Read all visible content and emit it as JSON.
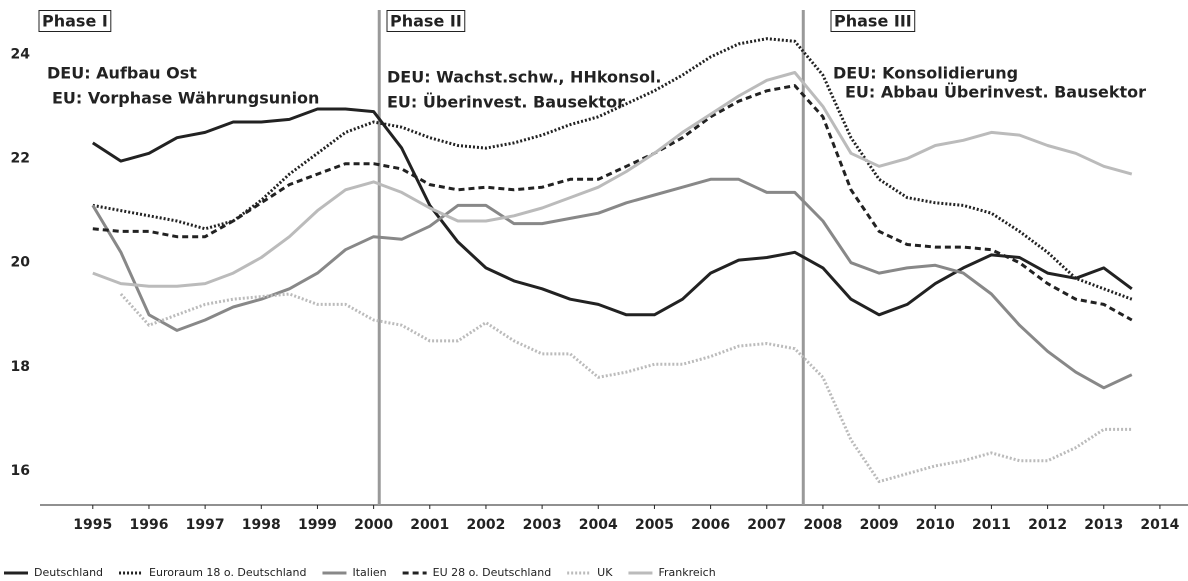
{
  "chart_data": {
    "type": "line",
    "x": [
      1995,
      1995.5,
      1996,
      1996.5,
      1997,
      1997.5,
      1998,
      1998.5,
      1999,
      1999.5,
      2000,
      2000.5,
      2001,
      2001.5,
      2002,
      2002.5,
      2003,
      2003.5,
      2004,
      2004.5,
      2005,
      2005.5,
      2006,
      2006.5,
      2007,
      2007.5,
      2008,
      2008.5,
      2009,
      2009.5,
      2010,
      2010.5,
      2011,
      2011.5,
      2012,
      2012.5,
      2013,
      2013.5
    ],
    "xlim": [
      1994.06,
      2014.5
    ],
    "xticks": [
      1995,
      1996,
      1997,
      1998,
      1999,
      2000,
      2001,
      2002,
      2003,
      2004,
      2005,
      2006,
      2007,
      2008,
      2009,
      2010,
      2011,
      2012,
      2013,
      2014
    ],
    "ylim": [
      15.35,
      24.85
    ],
    "yticks": [
      16,
      18,
      20,
      22,
      24
    ],
    "phase_lines": [
      2000.1,
      2007.65
    ],
    "annotations": [
      "Phase I",
      "Phase II",
      "Phase III",
      "DEU: Aufbau Ost",
      "EU: Vorphase Währungsunion",
      "DEU: Wachst.schw., HHkonsol.",
      "EU: Überinvest. Bausektor",
      "DEU: Konsolidierung",
      "EU: Abbau Überinvest. Bausektor"
    ],
    "series": [
      {
        "name": "Deutschland",
        "color": "#222222",
        "dash": "solid",
        "values": [
          22.3,
          21.95,
          22.1,
          22.4,
          22.5,
          22.7,
          22.7,
          22.75,
          22.95,
          22.95,
          22.9,
          22.2,
          21.1,
          20.4,
          19.9,
          19.65,
          19.5,
          19.3,
          19.2,
          19.0,
          19.0,
          19.3,
          19.8,
          20.05,
          20.1,
          20.2,
          19.9,
          19.3,
          19.0,
          19.2,
          19.6,
          19.9,
          20.15,
          20.1,
          19.8,
          19.7,
          19.9,
          19.5
        ]
      },
      {
        "name": "Euroraum 18 o. Deutschland",
        "color": "#222222",
        "dash": "dotted",
        "values": [
          21.1,
          21.0,
          20.9,
          20.8,
          20.65,
          20.8,
          21.2,
          21.7,
          22.1,
          22.5,
          22.7,
          22.6,
          22.4,
          22.25,
          22.2,
          22.3,
          22.45,
          22.65,
          22.8,
          23.05,
          23.3,
          23.6,
          23.95,
          24.2,
          24.3,
          24.25,
          23.6,
          22.4,
          21.6,
          21.25,
          21.15,
          21.1,
          20.95,
          20.6,
          20.2,
          19.7,
          19.5,
          19.3
        ]
      },
      {
        "name": "Italien",
        "color": "#888888",
        "dash": "solid",
        "values": [
          21.1,
          20.2,
          19.0,
          18.7,
          18.9,
          19.15,
          19.3,
          19.5,
          19.8,
          20.25,
          20.5,
          20.45,
          20.7,
          21.1,
          21.1,
          20.75,
          20.75,
          20.85,
          20.95,
          21.15,
          21.3,
          21.45,
          21.6,
          21.6,
          21.35,
          21.35,
          20.8,
          20.0,
          19.8,
          19.9,
          19.95,
          19.8,
          19.4,
          18.8,
          18.3,
          17.9,
          17.6,
          17.85
        ]
      },
      {
        "name": "EU 28 o. Deutschland",
        "color": "#222222",
        "dash": "dashed",
        "values": [
          20.65,
          20.6,
          20.6,
          20.5,
          20.5,
          20.8,
          21.15,
          21.5,
          21.7,
          21.9,
          21.9,
          21.8,
          21.5,
          21.4,
          21.45,
          21.4,
          21.45,
          21.6,
          21.6,
          21.85,
          22.1,
          22.4,
          22.8,
          23.1,
          23.3,
          23.4,
          22.8,
          21.4,
          20.6,
          20.35,
          20.3,
          20.3,
          20.25,
          20.0,
          19.6,
          19.3,
          19.2,
          18.9
        ]
      },
      {
        "name": "UK",
        "color": "#bbbbbb",
        "dash": "dotted",
        "values": [
          null,
          19.4,
          18.8,
          19.0,
          19.2,
          19.3,
          19.35,
          19.4,
          19.2,
          19.2,
          18.9,
          18.8,
          18.5,
          18.5,
          18.85,
          18.5,
          18.25,
          18.25,
          17.8,
          17.9,
          18.05,
          18.05,
          18.2,
          18.4,
          18.45,
          18.35,
          17.8,
          16.6,
          15.8,
          15.95,
          16.1,
          16.2,
          16.35,
          16.2,
          16.2,
          16.45,
          16.8,
          16.8
        ]
      },
      {
        "name": "Frankreich",
        "color": "#bbbbbb",
        "dash": "solid",
        "values": [
          19.8,
          19.6,
          19.55,
          19.55,
          19.6,
          19.8,
          20.1,
          20.5,
          21.0,
          21.4,
          21.55,
          21.35,
          21.05,
          20.8,
          20.8,
          20.9,
          21.05,
          21.25,
          21.45,
          21.75,
          22.1,
          22.5,
          22.85,
          23.2,
          23.5,
          23.65,
          23.0,
          22.1,
          21.85,
          22.0,
          22.25,
          22.35,
          22.5,
          22.45,
          22.25,
          22.1,
          21.85,
          21.7
        ]
      }
    ]
  }
}
